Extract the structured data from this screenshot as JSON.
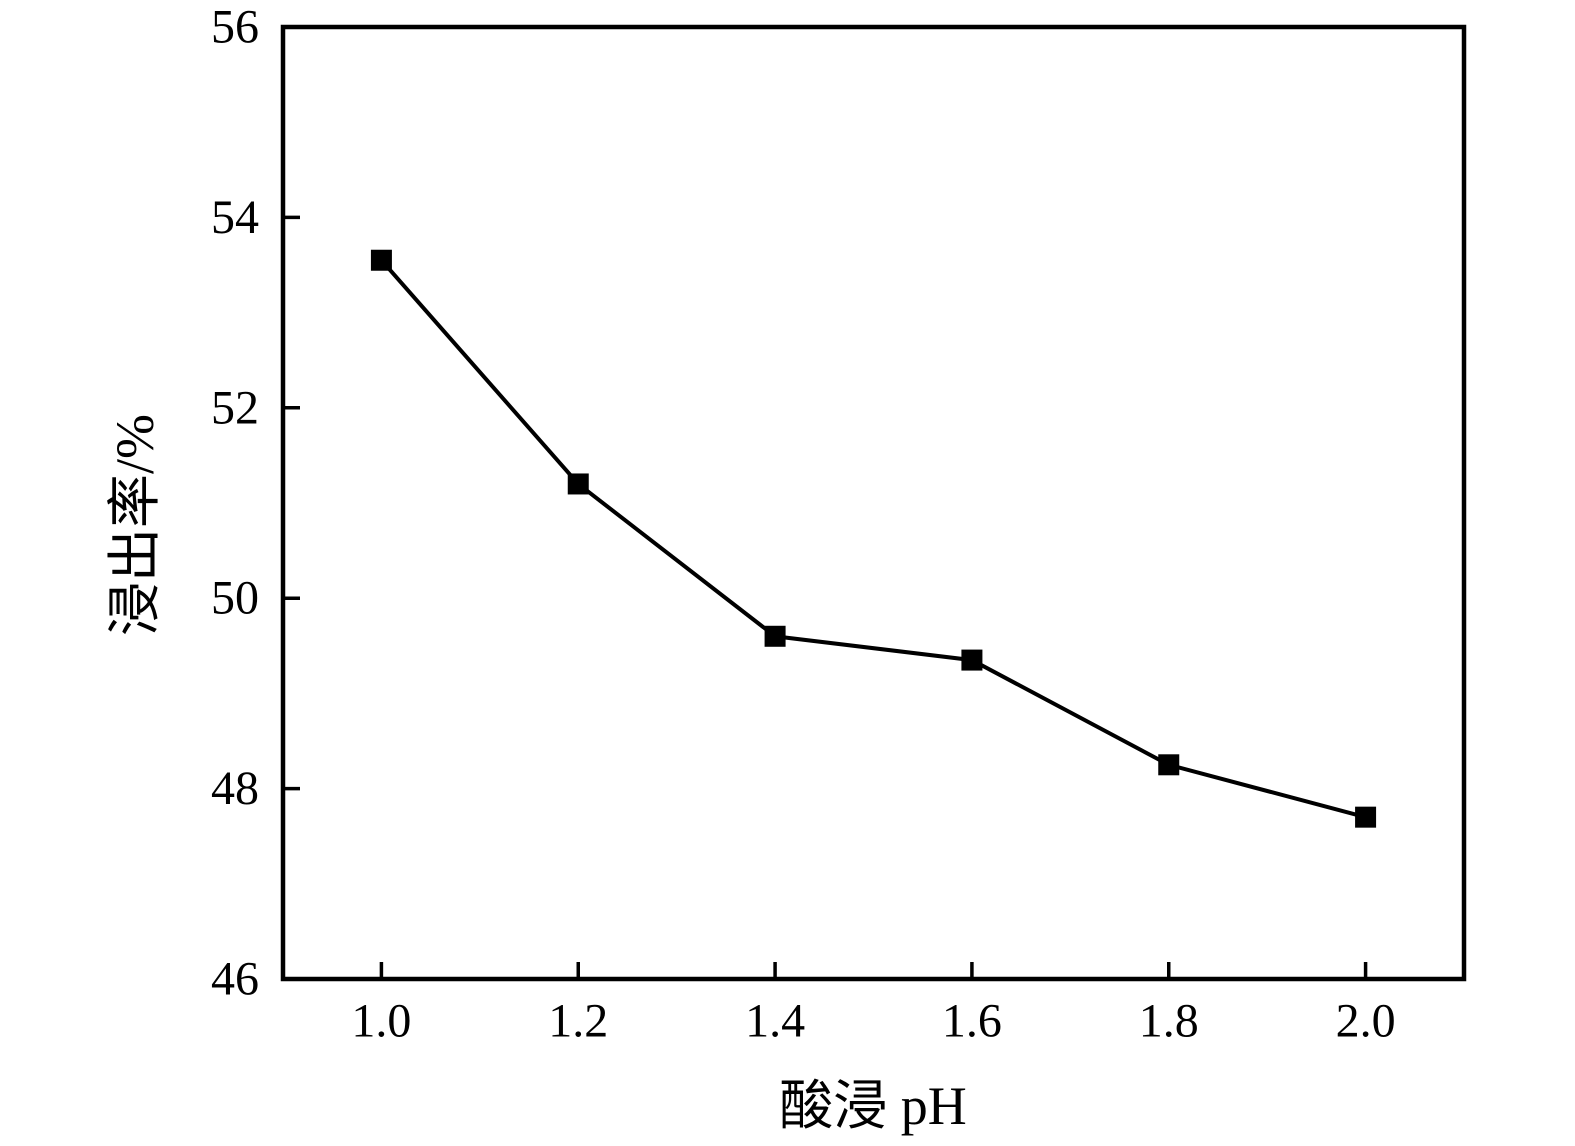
{
  "chart_data": {
    "type": "line",
    "title": "",
    "xlabel": "酸浸 pH",
    "ylabel": "浸出率/%",
    "x": [
      1.0,
      1.2,
      1.4,
      1.6,
      1.8,
      2.0
    ],
    "y": [
      53.55,
      51.2,
      49.6,
      49.35,
      48.25,
      47.7
    ],
    "xlim": [
      0.9,
      2.1
    ],
    "ylim": [
      46,
      56
    ],
    "xticks": [
      {
        "value": 1.0,
        "label": "1.0"
      },
      {
        "value": 1.2,
        "label": "1.2"
      },
      {
        "value": 1.4,
        "label": "1.4"
      },
      {
        "value": 1.6,
        "label": "1.6"
      },
      {
        "value": 1.8,
        "label": "1.8"
      },
      {
        "value": 2.0,
        "label": "2.0"
      }
    ],
    "yticks": [
      {
        "value": 46,
        "label": "46"
      },
      {
        "value": 48,
        "label": "48"
      },
      {
        "value": 50,
        "label": "50"
      },
      {
        "value": 52,
        "label": "52"
      },
      {
        "value": 54,
        "label": "54"
      },
      {
        "value": 56,
        "label": "56"
      }
    ],
    "grid": false,
    "legend": "none",
    "marker": "filled-square",
    "line_color": "#000000",
    "marker_color": "#000000",
    "frame_color": "#000000",
    "background_color": "#ffffff"
  }
}
